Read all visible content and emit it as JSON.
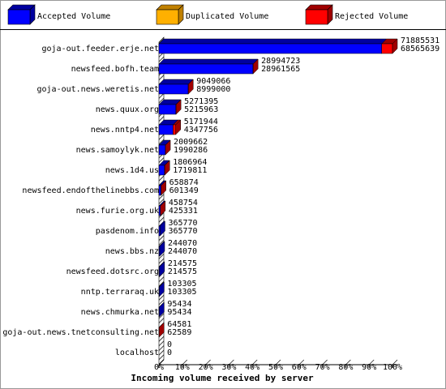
{
  "chart_data": {
    "type": "bar",
    "orientation": "horizontal",
    "stacked": true,
    "xlabel": "Incoming volume received by server",
    "categories": [
      "goja-out.feeder.erje.net",
      "newsfeed.bofh.team",
      "goja-out.news.weretis.net",
      "news.quux.org",
      "news.nntp4.net",
      "news.samoylyk.net",
      "news.1d4.us",
      "newsfeed.endofthelinebbs.com",
      "news.furie.org.uk",
      "pasdenom.info",
      "news.bbs.nz",
      "newsfeed.dotsrc.org",
      "nntp.terraraq.uk",
      "news.chmurka.net",
      "goja-out.news.tnetconsulting.net",
      "localhost"
    ],
    "totals": [
      71885531,
      28994723,
      9049066,
      5271395,
      5171944,
      2009662,
      1806964,
      658874,
      458754,
      365770,
      244070,
      214575,
      103305,
      95434,
      64581,
      0
    ],
    "series": [
      {
        "name": "Accepted Volume",
        "color": "#0000ff",
        "top_color": "#0000a0",
        "values": [
          68565639,
          28961565,
          8999000,
          5215963,
          4347756,
          1990286,
          1719811,
          601349,
          425331,
          365770,
          244070,
          214575,
          103305,
          95434,
          62589,
          0
        ]
      },
      {
        "name": "Duplicated Volume",
        "color": "#ffb000",
        "top_color": "#c08000",
        "values": [
          0,
          0,
          0,
          0,
          0,
          0,
          0,
          0,
          0,
          0,
          0,
          0,
          0,
          0,
          0,
          0
        ]
      },
      {
        "name": "Rejected Volume",
        "color": "#ff0000",
        "top_color": "#a00000",
        "values": [
          3319892,
          33158,
          50066,
          55432,
          824188,
          19376,
          87153,
          57525,
          33423,
          0,
          0,
          0,
          0,
          0,
          1992,
          0
        ]
      }
    ],
    "xlim": [
      0,
      71885531
    ],
    "xticks": [
      {
        "value": 0,
        "label": "0%"
      },
      {
        "value": 7188553.1,
        "label": "10%"
      },
      {
        "value": 14377106.2,
        "label": "20%"
      },
      {
        "value": 21565659.3,
        "label": "30%"
      },
      {
        "value": 28754212.4,
        "label": "40%"
      },
      {
        "value": 35942765.5,
        "label": "50%"
      },
      {
        "value": 43131318.6,
        "label": "60%"
      },
      {
        "value": 50319871.7,
        "label": "70%"
      },
      {
        "value": 57508424.8,
        "label": "80%"
      },
      {
        "value": 64696977.9,
        "label": "90%"
      },
      {
        "value": 71885531,
        "label": "100%"
      }
    ]
  }
}
